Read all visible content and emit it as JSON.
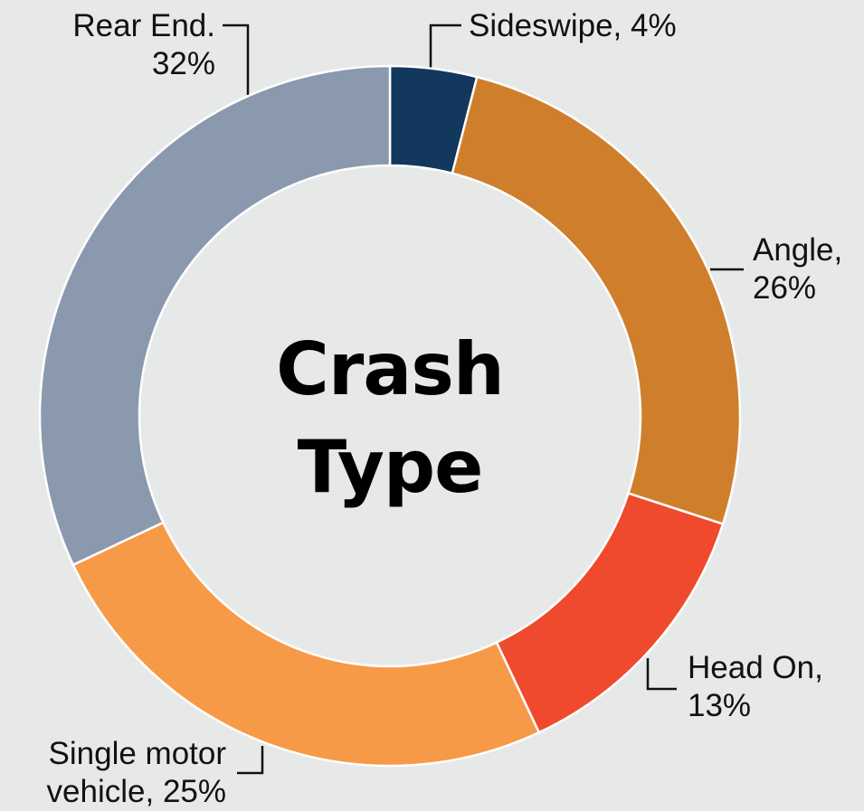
{
  "chart_data": {
    "type": "donut",
    "title": "Crash Type",
    "categories": [
      "Sideswipe",
      "Angle",
      "Head On",
      "Single motor vehicle",
      "Rear End"
    ],
    "values": [
      4,
      26,
      13,
      25,
      32
    ],
    "value_labels": [
      [
        "Sideswipe, 4%"
      ],
      [
        "Angle,",
        "26%"
      ],
      [
        "Head On,",
        "13%"
      ],
      [
        "Single motor",
        "vehicle, 25%"
      ],
      [
        "Rear End.",
        "32%"
      ]
    ],
    "colors": [
      "#12385e",
      "#cf7f2c",
      "#ef4a2d",
      "#f79a48",
      "#8a99ae"
    ]
  }
}
